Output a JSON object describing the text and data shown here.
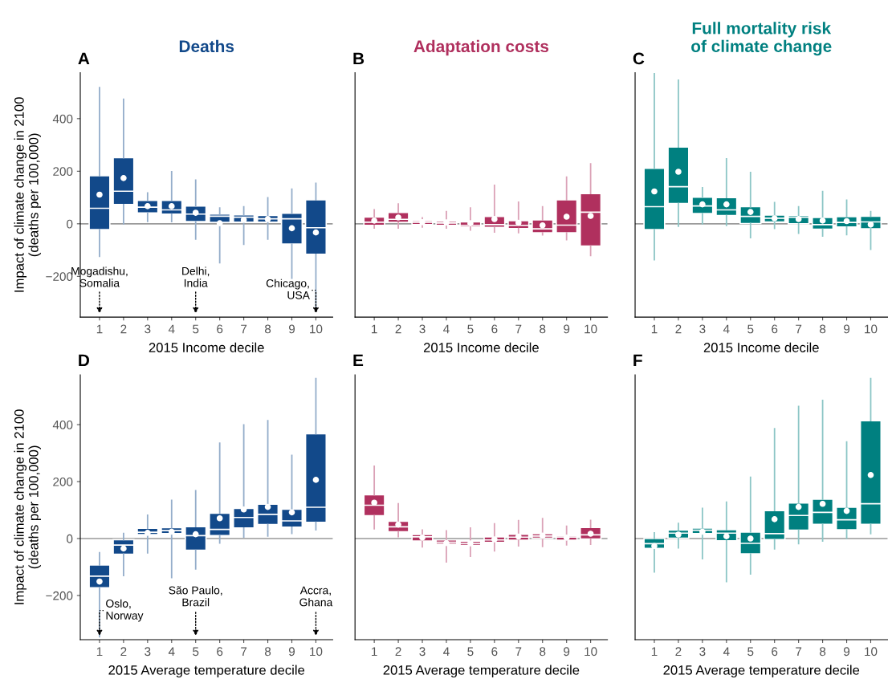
{
  "chart_data": [
    {
      "type": "box",
      "title": "A",
      "subtitle": "Deaths",
      "xlabel": "2015 Income decile",
      "ylabel": "Impact of climate change in 2100\n(deaths per 100,000)",
      "categories": [
        "1",
        "2",
        "3",
        "4",
        "5",
        "6",
        "7",
        "8",
        "9",
        "10"
      ],
      "ylim": [
        -355,
        575
      ],
      "yticks": [
        -200,
        0,
        200,
        400
      ],
      "ref_lines": [
        {
          "axis": "y",
          "value": 0,
          "color": "#999999"
        }
      ],
      "annotations": [
        "Mogadishu,\nSomalia",
        "Delhi,\nIndia",
        "Chicago,\nUSA"
      ],
      "series": [
        {
          "color": "#12498a",
          "boxes": [
            {
              "low": -124,
              "q1": -22,
              "median": 59,
              "q3": 183,
              "high": 518,
              "mean": 111
            },
            {
              "low": 0,
              "q1": 73,
              "median": 124,
              "q3": 252,
              "high": 474,
              "mean": 174
            },
            {
              "low": 9,
              "q1": 41,
              "median": 63,
              "q3": 89,
              "high": 117,
              "mean": 67
            },
            {
              "low": 8,
              "q1": 37,
              "median": 53,
              "q3": 89,
              "high": 198,
              "mean": 67
            },
            {
              "low": -58,
              "q1": 8,
              "median": 37,
              "q3": 68,
              "high": 166,
              "mean": 42
            },
            {
              "low": -148,
              "q1": 5,
              "median": 29,
              "q3": 37,
              "high": 60,
              "mean": 2
            },
            {
              "low": -78,
              "q1": 6,
              "median": 25,
              "q3": 34,
              "high": 65,
              "mean": 15
            },
            {
              "low": -58,
              "q1": 6,
              "median": 19,
              "q3": 32,
              "high": 99,
              "mean": 18
            },
            {
              "low": -207,
              "q1": -77,
              "median": 19,
              "q3": 40,
              "high": 132,
              "mean": -17
            },
            {
              "low": -320,
              "q1": -116,
              "median": -15,
              "q3": 91,
              "high": 154,
              "mean": -33
            }
          ]
        }
      ]
    },
    {
      "type": "box",
      "title": "B",
      "subtitle": "Adaptation costs",
      "xlabel": "2015 Income decile",
      "categories": [
        "1",
        "2",
        "3",
        "4",
        "5",
        "6",
        "7",
        "8",
        "9",
        "10"
      ],
      "ylim": [
        -355,
        575
      ],
      "yticks": [
        -200,
        0,
        200,
        400
      ],
      "tick_labels": "x",
      "ref_lines": [
        {
          "axis": "y",
          "value": 0,
          "color": "#999999"
        }
      ],
      "series": [
        {
          "color": "#b0305e",
          "boxes": [
            {
              "low": -16,
              "q1": -6,
              "median": 6,
              "q3": 26,
              "high": 53,
              "mean": 12
            },
            {
              "low": -16,
              "q1": 5,
              "median": 17,
              "q3": 43,
              "high": 75,
              "mean": 24
            },
            {
              "low": -12,
              "q1": -3,
              "median": 6,
              "q3": 12,
              "high": 23,
              "mean": 6
            },
            {
              "low": -16,
              "q1": -6,
              "median": 3,
              "q3": 10,
              "high": 46,
              "mean": 5
            },
            {
              "low": -24,
              "q1": -12,
              "median": -6,
              "q3": 7,
              "high": 60,
              "mean": 2
            },
            {
              "low": -31,
              "q1": -14,
              "median": -3,
              "q3": 28,
              "high": 146,
              "mean": 18
            },
            {
              "low": -34,
              "q1": -18,
              "median": -6,
              "q3": 12,
              "high": 82,
              "mean": 4
            },
            {
              "low": -42,
              "q1": -34,
              "median": -19,
              "q3": 15,
              "high": 65,
              "mean": -6
            },
            {
              "low": -60,
              "q1": -34,
              "median": -5,
              "q3": 91,
              "high": 178,
              "mean": 27
            },
            {
              "low": -121,
              "q1": -85,
              "median": 44,
              "q3": 115,
              "high": 228,
              "mean": 30
            }
          ]
        }
      ]
    },
    {
      "type": "box",
      "title": "C",
      "subtitle": "Full mortality risk\nof climate change",
      "xlabel": "2015 Income decile",
      "categories": [
        "1",
        "2",
        "3",
        "4",
        "5",
        "6",
        "7",
        "8",
        "9",
        "10"
      ],
      "ylim": [
        -355,
        575
      ],
      "yticks": [
        -200,
        0,
        200,
        400
      ],
      "tick_labels": "x",
      "ref_lines": [
        {
          "axis": "y",
          "value": 0,
          "color": "#999999"
        }
      ],
      "series": [
        {
          "color": "#008080",
          "boxes": [
            {
              "low": -137,
              "q1": -22,
              "median": 65,
              "q3": 211,
              "high": 571,
              "mean": 123
            },
            {
              "low": -9,
              "q1": 77,
              "median": 141,
              "q3": 292,
              "high": 546,
              "mean": 198
            },
            {
              "low": 0,
              "q1": 39,
              "median": 68,
              "q3": 101,
              "high": 137,
              "mean": 74
            },
            {
              "low": -6,
              "q1": 31,
              "median": 53,
              "q3": 100,
              "high": 247,
              "mean": 74
            },
            {
              "low": -53,
              "q1": 1,
              "median": 28,
              "q3": 65,
              "high": 195,
              "mean": 45
            },
            {
              "low": -18,
              "q1": 7,
              "median": 21,
              "q3": 33,
              "high": 81,
              "mean": 21
            },
            {
              "low": -36,
              "q1": 0,
              "median": 25,
              "q3": 32,
              "high": 65,
              "mean": 18
            },
            {
              "low": -47,
              "q1": -21,
              "median": -3,
              "q3": 24,
              "high": 123,
              "mean": 12
            },
            {
              "low": -41,
              "q1": -12,
              "median": 5,
              "q3": 27,
              "high": 90,
              "mean": 10
            },
            {
              "low": -97,
              "q1": -19,
              "median": 7,
              "q3": 29,
              "high": 46,
              "mean": -3
            }
          ]
        }
      ]
    },
    {
      "type": "box",
      "title": "D",
      "xlabel": "2015 Average temperature decile",
      "ylabel": "Impact of climate change in 2100\n(deaths per 100,000)",
      "categories": [
        "1",
        "2",
        "3",
        "4",
        "5",
        "6",
        "7",
        "8",
        "9",
        "10"
      ],
      "ylim": [
        -355,
        575
      ],
      "yticks": [
        -200,
        0,
        200,
        400
      ],
      "ref_lines": [
        {
          "axis": "y",
          "value": 0,
          "color": "#999999"
        }
      ],
      "annotations": [
        {
          "text": "Oslo,\nNorway",
          "x": "1"
        },
        "São Paulo,\nBrazil",
        "Accra,\nGhana"
      ],
      "series": [
        {
          "color": "#12498a",
          "boxes": [
            {
              "low": -345,
              "q1": -173,
              "median": -132,
              "q3": -93,
              "high": -50,
              "mean": -151
            },
            {
              "low": -130,
              "q1": -55,
              "median": -23,
              "q3": -4,
              "high": 18,
              "mean": -35
            },
            {
              "low": -50,
              "q1": 14,
              "median": 22,
              "q3": 36,
              "high": 82,
              "mean": 20
            },
            {
              "low": -137,
              "q1": 17,
              "median": 28,
              "q3": 38,
              "high": 134,
              "mean": 24
            },
            {
              "low": -107,
              "q1": -41,
              "median": 10,
              "q3": 42,
              "high": 168,
              "mean": 15
            },
            {
              "low": -16,
              "q1": 10,
              "median": 32,
              "q3": 89,
              "high": 335,
              "mean": 71
            },
            {
              "low": 5,
              "q1": 37,
              "median": 74,
              "q3": 106,
              "high": 399,
              "mean": 102
            },
            {
              "low": 9,
              "q1": 49,
              "median": 85,
              "q3": 121,
              "high": 414,
              "mean": 111
            },
            {
              "low": 18,
              "q1": 40,
              "median": 62,
              "q3": 103,
              "high": 292,
              "mean": 92
            },
            {
              "low": 31,
              "q1": 57,
              "median": 110,
              "q3": 368,
              "high": 562,
              "mean": 206
            }
          ]
        }
      ]
    },
    {
      "type": "box",
      "title": "E",
      "xlabel": "2015 Average temperature decile",
      "categories": [
        "1",
        "2",
        "3",
        "4",
        "5",
        "6",
        "7",
        "8",
        "9",
        "10"
      ],
      "ylim": [
        -355,
        575
      ],
      "yticks": [
        -200,
        0,
        200,
        400
      ],
      "tick_labels": "x",
      "ref_lines": [
        {
          "axis": "y",
          "value": 0,
          "color": "#999999"
        }
      ],
      "series": [
        {
          "color": "#b0305e",
          "boxes": [
            {
              "low": 34,
              "q1": 80,
              "median": 117,
              "q3": 154,
              "high": 254,
              "mean": 126
            },
            {
              "low": 7,
              "q1": 24,
              "median": 41,
              "q3": 61,
              "high": 122,
              "mean": 49
            },
            {
              "low": -29,
              "q1": -9,
              "median": 6,
              "q3": 14,
              "high": 30,
              "mean": 3
            },
            {
              "low": -82,
              "q1": -20,
              "median": -13,
              "q3": -5,
              "high": 27,
              "mean": -16
            },
            {
              "low": -62,
              "q1": -25,
              "median": -18,
              "q3": -10,
              "high": 37,
              "mean": -17
            },
            {
              "low": -43,
              "q1": -14,
              "median": -5,
              "q3": 6,
              "high": 52,
              "mean": -3
            },
            {
              "low": -26,
              "q1": -6,
              "median": 5,
              "q3": 15,
              "high": 63,
              "mean": 7
            },
            {
              "low": -28,
              "q1": 1,
              "median": 9,
              "q3": 17,
              "high": 70,
              "mean": 10
            },
            {
              "low": -22,
              "q1": -6,
              "median": 5,
              "q3": 9,
              "high": 43,
              "mean": 3
            },
            {
              "low": -20,
              "q1": -2,
              "median": 13,
              "q3": 39,
              "high": 64,
              "mean": 17
            }
          ]
        }
      ]
    },
    {
      "type": "box",
      "title": "F",
      "xlabel": "2015 Average temperature decile",
      "categories": [
        "1",
        "2",
        "3",
        "4",
        "5",
        "6",
        "7",
        "8",
        "9",
        "10"
      ],
      "ylim": [
        -355,
        575
      ],
      "yticks": [
        -200,
        0,
        200,
        400
      ],
      "tick_labels": "x",
      "ref_lines": [
        {
          "axis": "y",
          "value": 0,
          "color": "#999999"
        }
      ],
      "series": [
        {
          "color": "#008080",
          "boxes": [
            {
              "low": -117,
              "q1": -35,
              "median": -18,
              "q3": 0,
              "high": 20,
              "mean": -26
            },
            {
              "low": -33,
              "q1": 1,
              "median": 19,
              "q3": 30,
              "high": 53,
              "mean": 14
            },
            {
              "low": -71,
              "q1": 17,
              "median": 29,
              "q3": 37,
              "high": 106,
              "mean": 24
            },
            {
              "low": -151,
              "q1": -8,
              "median": 19,
              "q3": 31,
              "high": 128,
              "mean": 8
            },
            {
              "low": -124,
              "q1": -54,
              "median": -17,
              "q3": 23,
              "high": 215,
              "mean": 0
            },
            {
              "low": -36,
              "q1": -4,
              "median": 17,
              "q3": 98,
              "high": 386,
              "mean": 68
            },
            {
              "low": -18,
              "q1": 29,
              "median": 81,
              "q3": 125,
              "high": 464,
              "mean": 111
            },
            {
              "low": -9,
              "q1": 50,
              "median": 92,
              "q3": 138,
              "high": 485,
              "mean": 122
            },
            {
              "low": 1,
              "q1": 31,
              "median": 66,
              "q3": 110,
              "high": 339,
              "mean": 97
            },
            {
              "low": 17,
              "q1": 50,
              "median": 122,
              "q3": 414,
              "high": 562,
              "mean": 223
            }
          ]
        }
      ]
    }
  ]
}
